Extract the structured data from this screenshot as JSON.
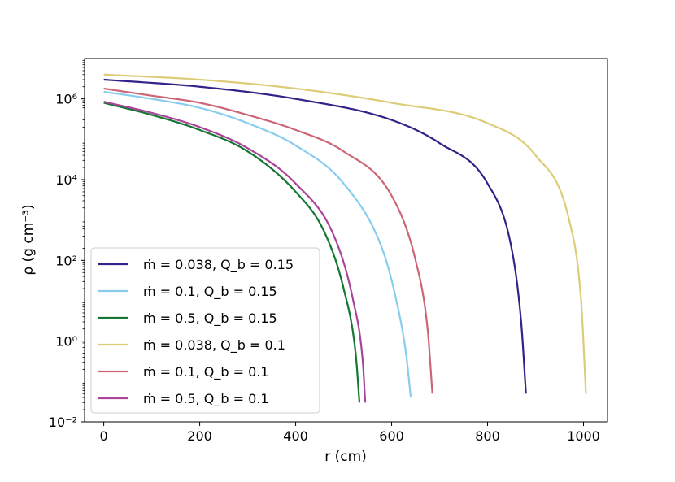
{
  "chart_data": {
    "type": "line",
    "title": "",
    "xlabel": "r (cm)",
    "ylabel": "ρ (g cm⁻³)",
    "xlim": [
      -40,
      1050
    ],
    "ylim": [
      0.01,
      10000000
    ],
    "yscale": "log",
    "x_ticks": [
      0,
      200,
      400,
      600,
      800,
      1000
    ],
    "x_tick_labels": [
      "0",
      "200",
      "400",
      "600",
      "800",
      "1000"
    ],
    "y_ticks": [
      0.01,
      1,
      100,
      10000,
      1000000
    ],
    "y_tick_labels": [
      "10⁻²",
      "10⁰",
      "10²",
      "10⁴",
      "10⁶"
    ],
    "grid": false,
    "legend_position": "lower-left",
    "series": [
      {
        "name": "ṁ = 0.038, Q_b = 0.15",
        "legend_label": "ṁ = 0.038, Q_b = 0.15",
        "color": "#332288",
        "x": [
          0,
          200,
          400,
          600,
          700,
          800,
          850,
          870,
          880
        ],
        "y": [
          3000000,
          2000000,
          1000000,
          300000,
          80000,
          8000,
          200,
          3,
          0.05
        ]
      },
      {
        "name": "ṁ = 0.1, Q_b = 0.15",
        "legend_label": "ṁ = 0.1, Q_b = 0.15",
        "color": "#88CCEE",
        "x": [
          0,
          100,
          200,
          300,
          400,
          500,
          580,
          610,
          630,
          640
        ],
        "y": [
          1500000,
          1000000,
          600000,
          250000,
          70000,
          8000,
          200,
          10,
          0.5,
          0.04
        ]
      },
      {
        "name": "ṁ = 0.5, Q_b = 0.15",
        "legend_label": "ṁ = 0.5, Q_b = 0.15",
        "color": "#117733",
        "x": [
          0,
          100,
          200,
          300,
          400,
          460,
          500,
          525,
          533
        ],
        "y": [
          800000,
          400000,
          170000,
          50000,
          5000,
          500,
          20,
          0.5,
          0.03
        ]
      },
      {
        "name": "ṁ = 0.038, Q_b = 0.1",
        "legend_label": "ṁ = 0.038, Q_b = 0.1",
        "color": "#DDCC77",
        "x": [
          0,
          200,
          400,
          600,
          800,
          900,
          970,
          995,
          1005
        ],
        "y": [
          4000000,
          3000000,
          1800000,
          800000,
          250000,
          40000,
          1000,
          10,
          0.05
        ]
      },
      {
        "name": "ṁ = 0.1, Q_b = 0.1",
        "legend_label": "ṁ = 0.1, Q_b = 0.1",
        "color": "#CC6677",
        "x": [
          0,
          100,
          200,
          300,
          400,
          500,
          600,
          650,
          675,
          685
        ],
        "y": [
          1800000,
          1200000,
          800000,
          400000,
          170000,
          50000,
          4000,
          100,
          2,
          0.05
        ]
      },
      {
        "name": "ṁ = 0.5, Q_b = 0.1",
        "legend_label": "ṁ = 0.5, Q_b = 0.1",
        "color": "#AA4499",
        "x": [
          0,
          100,
          200,
          300,
          400,
          480,
          520,
          540,
          545
        ],
        "y": [
          850000,
          450000,
          200000,
          60000,
          8000,
          400,
          10,
          0.3,
          0.03
        ]
      }
    ]
  }
}
